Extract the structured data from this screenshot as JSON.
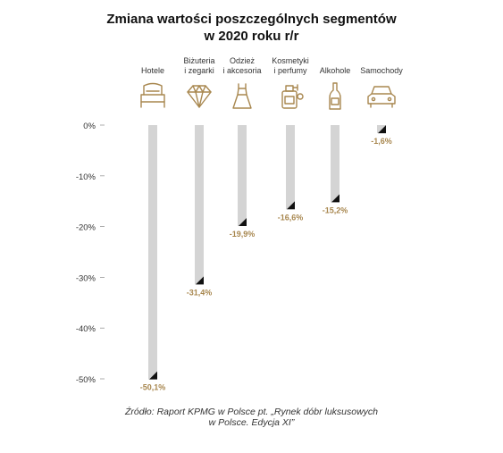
{
  "chart_data": {
    "type": "bar",
    "title": "Zmiana wartości poszczególnych segmentów w 2020 roku r/r",
    "title_lines": [
      "Zmiana wartości poszczególnych segmentów",
      "w 2020 roku r/r"
    ],
    "categories": [
      "Hotele",
      "Biżuteria i zegarki",
      "Odzież i akcesoria",
      "Kosmetyki i perfumy",
      "Alkohole",
      "Samochody"
    ],
    "category_lines": [
      [
        "Hotele"
      ],
      [
        "Biżuteria",
        "i zegarki"
      ],
      [
        "Odzież",
        "i akcesoria"
      ],
      [
        "Kosmetyki",
        "i perfumy"
      ],
      [
        "Alkohole"
      ],
      [
        "Samochody"
      ]
    ],
    "icons": [
      "hotel-bed-icon",
      "diamond-icon",
      "dress-icon",
      "perfume-bottle-icon",
      "bottle-icon",
      "car-icon"
    ],
    "values": [
      -50.1,
      -31.4,
      -19.9,
      -16.6,
      -15.2,
      -1.6
    ],
    "value_labels": [
      "-50,1%",
      "-31,4%",
      "-19,9%",
      "-16,6%",
      "-15,2%",
      "-1,6%"
    ],
    "ylim": [
      -50,
      0
    ],
    "yticks": [
      0,
      -10,
      -20,
      -30,
      -40,
      -50
    ],
    "ytick_labels": [
      "0%",
      "-10%",
      "-20%",
      "-30%",
      "-40%",
      "-50%"
    ],
    "xlabel": "",
    "ylabel": "",
    "grid": false,
    "colors": {
      "bar": "#d4d4d4",
      "accent": "#a8874f",
      "marker": "#111111",
      "text": "#333333"
    }
  },
  "source": {
    "lines": [
      "Źródło: Raport KPMG w Polsce pt. „Rynek dóbr luksusowych",
      "w Polsce. Edycja XI”"
    ]
  }
}
